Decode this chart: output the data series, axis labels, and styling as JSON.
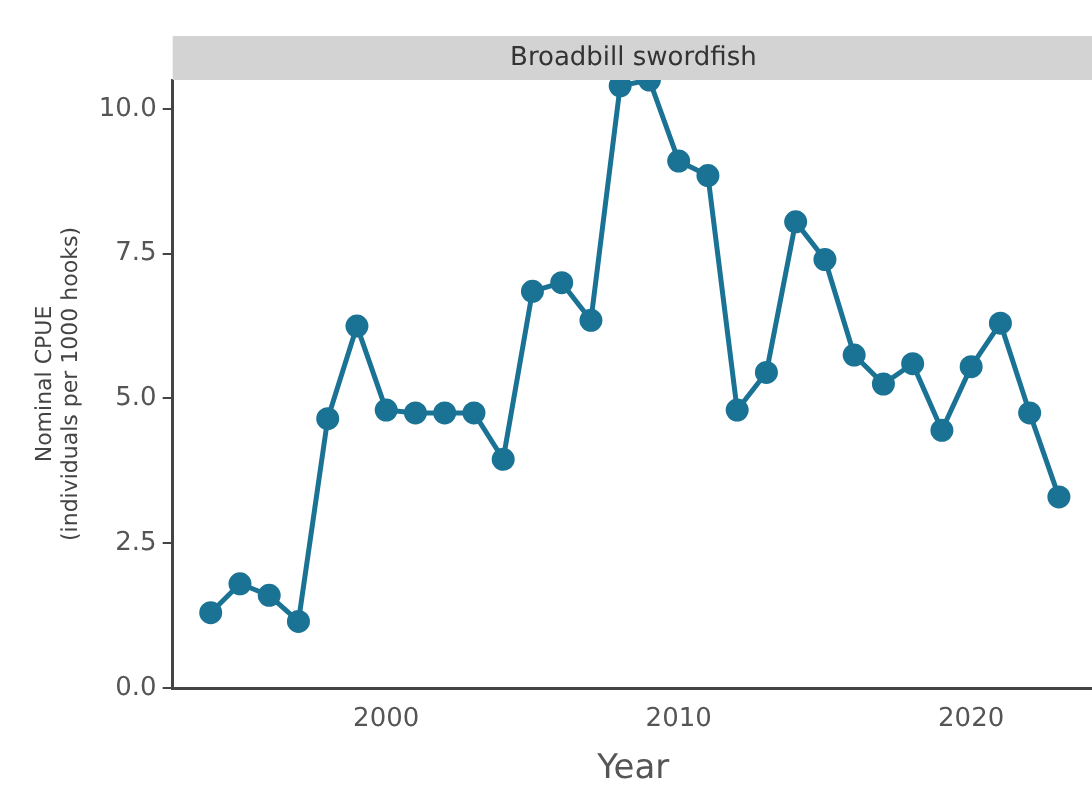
{
  "chart_data": {
    "type": "line",
    "title": "Broadbill swordfish",
    "xlabel": "Year",
    "ylabel": "Nominal CPUE\n(individuals per 1000 hooks)",
    "x": [
      1994,
      1995,
      1996,
      1997,
      1998,
      1999,
      2000,
      2001,
      2002,
      2003,
      2004,
      2005,
      2006,
      2007,
      2008,
      2009,
      2010,
      2011,
      2012,
      2013,
      2014,
      2015,
      2016,
      2017,
      2018,
      2019,
      2020,
      2021,
      2022,
      2023
    ],
    "series": [
      {
        "color": "#1a7394",
        "values": [
          1.3,
          1.8,
          1.6,
          1.15,
          4.65,
          6.25,
          4.8,
          4.75,
          4.75,
          4.75,
          3.95,
          6.85,
          7.0,
          6.35,
          10.4,
          10.5,
          9.1,
          8.85,
          4.8,
          5.45,
          8.05,
          7.4,
          5.75,
          5.25,
          5.6,
          4.45,
          5.55,
          6.3,
          4.75,
          3.3
        ]
      }
    ],
    "xlim": [
      1992.7,
      2024.2
    ],
    "xticks": [
      2000,
      2010,
      2020
    ],
    "ylim": [
      0,
      10.5
    ],
    "yticks": [
      {
        "value": 0,
        "label": "0.0"
      },
      {
        "value": 2.5,
        "label": "2.5"
      },
      {
        "value": 5,
        "label": "5.0"
      },
      {
        "value": 7.5,
        "label": "7.5"
      },
      {
        "value": 10,
        "label": "10.0"
      }
    ],
    "grid": false,
    "legend": false,
    "marker": "circle",
    "line_style": "solid"
  }
}
